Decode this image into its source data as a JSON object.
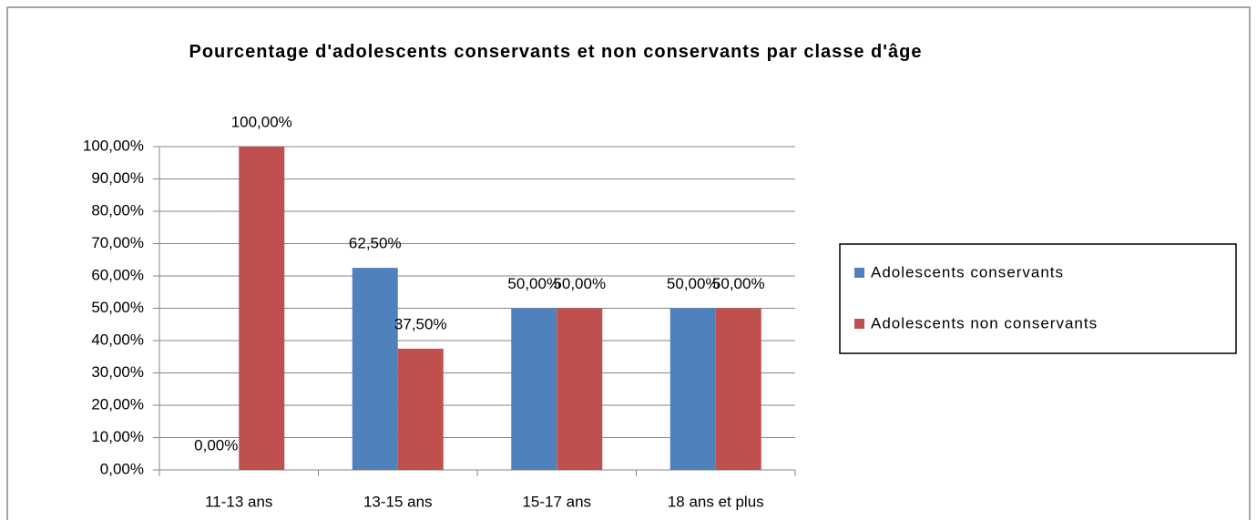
{
  "chart_data": {
    "type": "bar",
    "title": "Pourcentage d'adolescents conservants et non conservants par classe d'âge",
    "categories": [
      "11-13 ans",
      "13-15 ans",
      "15-17 ans",
      "18 ans et plus"
    ],
    "series": [
      {
        "name": "Adolescents conservants",
        "color": "#4f81bd",
        "values": [
          0,
          62.5,
          50,
          50
        ],
        "value_labels": [
          "0,00%",
          "62,50%",
          "50,00%",
          "50,00%"
        ]
      },
      {
        "name": "Adolescents non conservants",
        "color": "#c0504d",
        "values": [
          100,
          37.5,
          50,
          50
        ],
        "value_labels": [
          "100,00%",
          "37,50%",
          "50,00%",
          "50,00%"
        ]
      }
    ],
    "ylim": [
      0,
      100
    ],
    "yticks": [
      {
        "value": 0,
        "label": "0,00%"
      },
      {
        "value": 10,
        "label": "10,00%"
      },
      {
        "value": 20,
        "label": "20,00%"
      },
      {
        "value": 30,
        "label": "30,00%"
      },
      {
        "value": 40,
        "label": "40,00%"
      },
      {
        "value": 50,
        "label": "50,00%"
      },
      {
        "value": 60,
        "label": "60,00%"
      },
      {
        "value": 70,
        "label": "70,00%"
      },
      {
        "value": 80,
        "label": "80,00%"
      },
      {
        "value": 90,
        "label": "90,00%"
      },
      {
        "value": 100,
        "label": "100,00%"
      }
    ],
    "grid": true,
    "legend": "right"
  }
}
